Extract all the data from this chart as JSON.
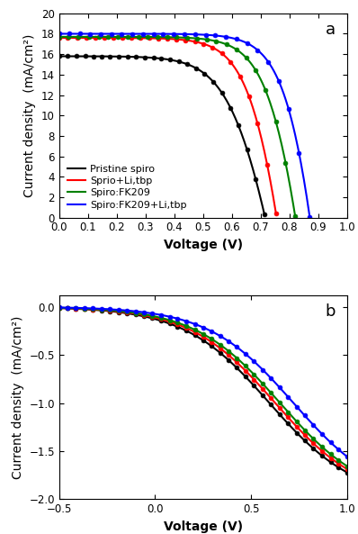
{
  "panel_a": {
    "title": "a",
    "xlabel": "Voltage (V)",
    "ylabel": "Current density  (mA/cm²)",
    "xlim": [
      0.0,
      1.0
    ],
    "ylim": [
      0,
      20
    ],
    "xticks": [
      0.0,
      0.1,
      0.2,
      0.3,
      0.4,
      0.5,
      0.6,
      0.7,
      0.8,
      0.9,
      1.0
    ],
    "yticks": [
      0,
      2,
      4,
      6,
      8,
      10,
      12,
      14,
      16,
      18,
      20
    ],
    "series": [
      {
        "label": "Pristine spiro",
        "color": "black",
        "jsc": 15.8,
        "voc": 0.715,
        "n": 2.8,
        "rs": 3.5
      },
      {
        "label": "Sprio+Li,tbp",
        "color": "red",
        "jsc": 17.6,
        "voc": 0.755,
        "n": 2.5,
        "rs": 2.0
      },
      {
        "label": "Spiro:FK209",
        "color": "green",
        "jsc": 17.7,
        "voc": 0.82,
        "n": 2.5,
        "rs": 2.0
      },
      {
        "label": "Spiro:FK209+Li,tbp",
        "color": "blue",
        "jsc": 18.0,
        "voc": 0.87,
        "n": 2.5,
        "rs": 1.5
      }
    ]
  },
  "panel_b": {
    "title": "b",
    "xlabel": "Voltage (V)",
    "ylabel": "Current density  (mA/cm²)",
    "xlim": [
      -0.5,
      1.0
    ],
    "ylim": [
      -2.0,
      0.12
    ],
    "xticks": [
      -0.5,
      0.0,
      0.5,
      1.0
    ],
    "yticks": [
      -2.0,
      -1.5,
      -1.0,
      -0.5,
      0.0
    ],
    "series": [
      {
        "label": "Pristine spiro",
        "color": "black",
        "voc": 0.595,
        "n": 4.5,
        "j0": 1.0
      },
      {
        "label": "Sprio+Li,tbp",
        "color": "red",
        "voc": 0.625,
        "n": 4.5,
        "j0": 1.0
      },
      {
        "label": "Spiro:FK209",
        "color": "green",
        "voc": 0.65,
        "n": 4.5,
        "j0": 1.0
      },
      {
        "label": "Spiro:FK209+Li,tbp",
        "color": "blue",
        "voc": 0.72,
        "n": 4.5,
        "j0": 1.0
      }
    ]
  },
  "marker_size": 3.5,
  "linewidth": 1.5,
  "background_color": "#ffffff",
  "legend_fontsize": 8.0,
  "axis_label_fontsize": 10,
  "tick_fontsize": 8.5
}
